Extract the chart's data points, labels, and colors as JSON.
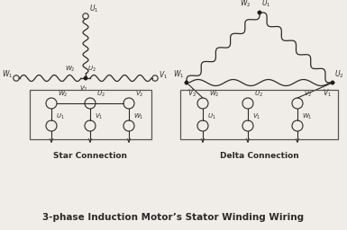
{
  "title": "3-phase Induction Motor’s Stator Winding Wiring",
  "star_label": "Star Connection",
  "delta_label": "Delta Connection",
  "bg_color": "#f0ede8",
  "line_color": "#2a2a2a",
  "box_color": "#555555"
}
